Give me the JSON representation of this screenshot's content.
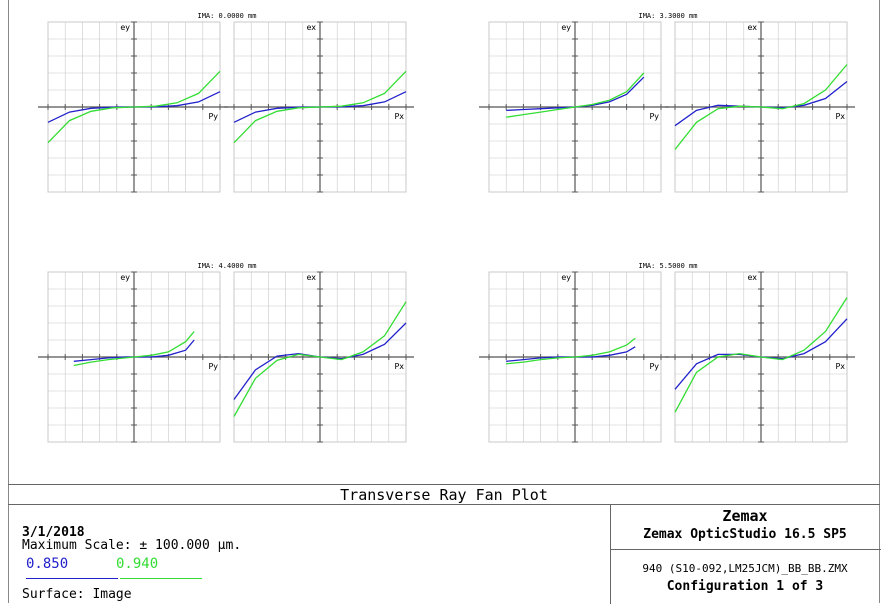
{
  "chart_data": {
    "type": "line",
    "title": "Transverse Ray Fan Plot",
    "x_range": [
      -1,
      1
    ],
    "y_range": [
      -100,
      100
    ],
    "grid": true,
    "series_names": [
      "0.850",
      "0.940"
    ],
    "colors": {
      "0.850": "#2222cc",
      "0.940": "#33dd33",
      "axis": "#555555",
      "grid": "#c8c8c8"
    },
    "fields": [
      {
        "title": "IMA: 0.0000 mm",
        "tangential": {
          "ylabel": "ey",
          "xlabel": "Py",
          "x": [
            -1,
            -0.75,
            -0.5,
            -0.25,
            0,
            0.25,
            0.5,
            0.75,
            1
          ],
          "series": [
            {
              "name": "0.850",
              "values": [
                -18,
                -6,
                -1.5,
                -0.2,
                0,
                0.2,
                1.5,
                6,
                18
              ]
            },
            {
              "name": "0.940",
              "values": [
                -42,
                -16,
                -5,
                -1,
                0,
                1,
                5,
                16,
                42
              ]
            }
          ]
        },
        "sagittal": {
          "ylabel": "ex",
          "xlabel": "Px",
          "x": [
            -1,
            -0.75,
            -0.5,
            -0.25,
            0,
            0.25,
            0.5,
            0.75,
            1
          ],
          "series": [
            {
              "name": "0.850",
              "values": [
                -18,
                -6,
                -1.5,
                -0.2,
                0,
                0.2,
                1.5,
                6,
                18
              ]
            },
            {
              "name": "0.940",
              "values": [
                -42,
                -16,
                -5,
                -1,
                0,
                1,
                5,
                16,
                42
              ]
            }
          ]
        }
      },
      {
        "title": "IMA: 3.3000 mm",
        "tangential": {
          "ylabel": "ey",
          "xlabel": "Py",
          "x": [
            -0.8,
            -0.6,
            -0.4,
            -0.2,
            0,
            0.2,
            0.4,
            0.6,
            0.8
          ],
          "series": [
            {
              "name": "0.850",
              "values": [
                -4,
                -3,
                -2,
                -1,
                0,
                2,
                6,
                15,
                35
              ]
            },
            {
              "name": "0.940",
              "values": [
                -12,
                -9,
                -6,
                -3,
                0,
                3,
                8,
                18,
                40
              ]
            }
          ]
        },
        "sagittal": {
          "ylabel": "ex",
          "xlabel": "Px",
          "x": [
            -1,
            -0.75,
            -0.5,
            -0.25,
            0,
            0.25,
            0.5,
            0.75,
            1
          ],
          "series": [
            {
              "name": "0.850",
              "values": [
                -22,
                -4,
                2,
                1,
                0,
                -1,
                2,
                10,
                30
              ]
            },
            {
              "name": "0.940",
              "values": [
                -50,
                -18,
                -2,
                1,
                0,
                -2,
                4,
                20,
                50
              ]
            }
          ]
        }
      },
      {
        "title": "IMA: 4.4000 mm",
        "tangential": {
          "ylabel": "ey",
          "xlabel": "Py",
          "x": [
            -0.7,
            -0.5,
            -0.3,
            -0.1,
            0,
            0.2,
            0.4,
            0.6,
            0.7
          ],
          "series": [
            {
              "name": "0.850",
              "values": [
                -5,
                -3,
                -1,
                0,
                0,
                0,
                2,
                8,
                20
              ]
            },
            {
              "name": "0.940",
              "values": [
                -10,
                -6,
                -3,
                -1,
                0,
                2,
                6,
                18,
                30
              ]
            }
          ]
        },
        "sagittal": {
          "ylabel": "ex",
          "xlabel": "Px",
          "x": [
            -1,
            -0.75,
            -0.5,
            -0.25,
            0,
            0.25,
            0.5,
            0.75,
            1
          ],
          "series": [
            {
              "name": "0.850",
              "values": [
                -50,
                -15,
                1,
                4,
                0,
                -2,
                3,
                15,
                40
              ]
            },
            {
              "name": "0.940",
              "values": [
                -70,
                -25,
                -4,
                3,
                0,
                -3,
                6,
                25,
                65
              ]
            }
          ]
        }
      },
      {
        "title": "IMA: 5.5000 mm",
        "tangential": {
          "ylabel": "ey",
          "xlabel": "Py",
          "x": [
            -0.8,
            -0.6,
            -0.4,
            -0.2,
            0,
            0.2,
            0.4,
            0.6,
            0.7
          ],
          "series": [
            {
              "name": "0.850",
              "values": [
                -5,
                -3,
                -1,
                0,
                0,
                0,
                2,
                6,
                12
              ]
            },
            {
              "name": "0.940",
              "values": [
                -8,
                -6,
                -3,
                -1,
                0,
                2,
                6,
                14,
                22
              ]
            }
          ]
        },
        "sagittal": {
          "ylabel": "ex",
          "xlabel": "Px",
          "x": [
            -1,
            -0.75,
            -0.5,
            -0.25,
            0,
            0.25,
            0.5,
            0.75,
            1
          ],
          "series": [
            {
              "name": "0.850",
              "values": [
                -38,
                -8,
                3,
                3,
                0,
                -2,
                4,
                18,
                45
              ]
            },
            {
              "name": "0.940",
              "values": [
                -65,
                -18,
                0,
                4,
                0,
                -3,
                8,
                30,
                70
              ]
            }
          ]
        }
      }
    ]
  },
  "footer": {
    "title": "Transverse Ray Fan Plot",
    "date": "3/1/2018",
    "max_scale": "Maximum Scale: ± 100.000 µm.",
    "wavelengths": [
      "0.850",
      "0.940"
    ],
    "surface": "Surface: Image",
    "brand": "Zemax",
    "product": "Zemax OpticStudio 16.5 SP5",
    "filename": "940 (S10-092,LM25JCM)_BB_BB.ZMX",
    "configuration": "Configuration 1 of 3"
  }
}
